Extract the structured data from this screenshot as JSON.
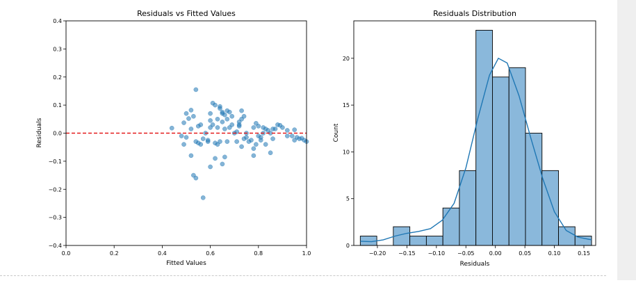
{
  "chart_data": [
    {
      "type": "scatter",
      "title": "Residuals vs Fitted Values",
      "xlabel": "Fitted Values",
      "ylabel": "Residuals",
      "xlim": [
        0.0,
        1.0
      ],
      "ylim": [
        -0.4,
        0.4
      ],
      "xticks": [
        "0.0",
        "0.2",
        "0.4",
        "0.6",
        "0.8",
        "1.0"
      ],
      "yticks": [
        "−0.4",
        "−0.3",
        "−0.2",
        "−0.1",
        "0.0",
        "0.1",
        "0.2",
        "0.3",
        "0.4"
      ],
      "reference_line": {
        "y": 0.0,
        "style": "dashed",
        "color": "#e41a1c"
      },
      "point_color": "#1f77b4",
      "grid": false,
      "points": [
        [
          0.44,
          0.018
        ],
        [
          0.48,
          -0.01
        ],
        [
          0.49,
          0.037
        ],
        [
          0.49,
          -0.04
        ],
        [
          0.5,
          0.07
        ],
        [
          0.5,
          -0.015
        ],
        [
          0.51,
          0.052
        ],
        [
          0.52,
          0.082
        ],
        [
          0.52,
          0.015
        ],
        [
          0.52,
          -0.08
        ],
        [
          0.53,
          0.06
        ],
        [
          0.53,
          -0.15
        ],
        [
          0.54,
          0.155
        ],
        [
          0.54,
          -0.03
        ],
        [
          0.54,
          -0.16
        ],
        [
          0.55,
          0.025
        ],
        [
          0.55,
          -0.035
        ],
        [
          0.56,
          0.03
        ],
        [
          0.56,
          -0.04
        ],
        [
          0.57,
          -0.23
        ],
        [
          0.57,
          -0.02
        ],
        [
          0.58,
          0.0
        ],
        [
          0.59,
          -0.025
        ],
        [
          0.59,
          -0.03
        ],
        [
          0.6,
          0.07
        ],
        [
          0.6,
          0.045
        ],
        [
          0.6,
          0.02
        ],
        [
          0.6,
          -0.12
        ],
        [
          0.61,
          0.107
        ],
        [
          0.61,
          0.03
        ],
        [
          0.62,
          -0.035
        ],
        [
          0.62,
          -0.09
        ],
        [
          0.62,
          0.1
        ],
        [
          0.63,
          0.02
        ],
        [
          0.63,
          -0.04
        ],
        [
          0.63,
          0.05
        ],
        [
          0.64,
          0.095
        ],
        [
          0.64,
          0.088
        ],
        [
          0.64,
          -0.03
        ],
        [
          0.65,
          0.07
        ],
        [
          0.65,
          0.075
        ],
        [
          0.65,
          0.04
        ],
        [
          0.65,
          -0.11
        ],
        [
          0.66,
          0.065
        ],
        [
          0.66,
          -0.085
        ],
        [
          0.66,
          0.015
        ],
        [
          0.67,
          0.08
        ],
        [
          0.67,
          0.05
        ],
        [
          0.67,
          -0.03
        ],
        [
          0.68,
          0.075
        ],
        [
          0.68,
          0.02
        ],
        [
          0.69,
          0.06
        ],
        [
          0.69,
          0.03
        ],
        [
          0.7,
          0.0
        ],
        [
          0.71,
          0.005
        ],
        [
          0.71,
          -0.03
        ],
        [
          0.72,
          0.04
        ],
        [
          0.72,
          0.025
        ],
        [
          0.72,
          0.03
        ],
        [
          0.73,
          -0.048
        ],
        [
          0.73,
          0.08
        ],
        [
          0.73,
          0.05
        ],
        [
          0.74,
          -0.02
        ],
        [
          0.74,
          0.06
        ],
        [
          0.75,
          0.0
        ],
        [
          0.75,
          -0.015
        ],
        [
          0.76,
          -0.03
        ],
        [
          0.77,
          -0.025
        ],
        [
          0.78,
          -0.055
        ],
        [
          0.78,
          -0.08
        ],
        [
          0.78,
          0.02
        ],
        [
          0.79,
          0.035
        ],
        [
          0.79,
          -0.04
        ],
        [
          0.8,
          0.025
        ],
        [
          0.8,
          -0.01
        ],
        [
          0.81,
          -0.025
        ],
        [
          0.81,
          -0.015
        ],
        [
          0.82,
          0.02
        ],
        [
          0.82,
          0.0
        ],
        [
          0.83,
          0.015
        ],
        [
          0.83,
          -0.04
        ],
        [
          0.84,
          0.01
        ],
        [
          0.85,
          0.0
        ],
        [
          0.85,
          -0.07
        ],
        [
          0.86,
          0.015
        ],
        [
          0.86,
          -0.02
        ],
        [
          0.87,
          0.015
        ],
        [
          0.88,
          0.03
        ],
        [
          0.89,
          0.028
        ],
        [
          0.9,
          0.02
        ],
        [
          0.92,
          0.01
        ],
        [
          0.92,
          -0.01
        ],
        [
          0.94,
          -0.01
        ],
        [
          0.95,
          0.012
        ],
        [
          0.95,
          -0.025
        ],
        [
          0.96,
          -0.015
        ],
        [
          0.97,
          -0.02
        ],
        [
          0.98,
          -0.018
        ],
        [
          0.99,
          -0.025
        ],
        [
          1.0,
          -0.03
        ]
      ]
    },
    {
      "type": "bar",
      "subtype": "histogram-with-kde",
      "title": "Residuals Distribution",
      "xlabel": "Residuals",
      "ylabel": "Count",
      "xlim": [
        -0.24,
        0.17
      ],
      "ylim": [
        0,
        24
      ],
      "xticks": [
        "−0.20",
        "−0.15",
        "−0.10",
        "−0.05",
        "0.00",
        "0.05",
        "0.10",
        "0.15"
      ],
      "yticks": [
        "0",
        "5",
        "10",
        "15",
        "20"
      ],
      "bar_color": "#8ab8db",
      "edge_color": "#000000",
      "kde_color": "#1f77b4",
      "grid": false,
      "bins": [
        [
          -0.229,
          -0.201,
          1
        ],
        [
          -0.201,
          -0.173,
          0
        ],
        [
          -0.173,
          -0.145,
          2
        ],
        [
          -0.145,
          -0.117,
          1
        ],
        [
          -0.117,
          -0.089,
          1
        ],
        [
          -0.089,
          -0.061,
          4
        ],
        [
          -0.061,
          -0.033,
          8
        ],
        [
          -0.033,
          -0.005,
          23
        ],
        [
          -0.005,
          0.023,
          18
        ],
        [
          0.023,
          0.051,
          19
        ],
        [
          0.051,
          0.079,
          12
        ],
        [
          0.079,
          0.107,
          8
        ],
        [
          0.107,
          0.135,
          2
        ],
        [
          0.135,
          0.163,
          1
        ]
      ],
      "kde": [
        [
          -0.229,
          0.45
        ],
        [
          -0.21,
          0.4
        ],
        [
          -0.19,
          0.6
        ],
        [
          -0.17,
          1.0
        ],
        [
          -0.15,
          1.3
        ],
        [
          -0.13,
          1.5
        ],
        [
          -0.11,
          1.8
        ],
        [
          -0.09,
          2.7
        ],
        [
          -0.07,
          4.5
        ],
        [
          -0.05,
          8.3
        ],
        [
          -0.03,
          13.5
        ],
        [
          -0.01,
          18.2
        ],
        [
          0.005,
          20.0
        ],
        [
          0.02,
          19.5
        ],
        [
          0.04,
          16.0
        ],
        [
          0.06,
          11.5
        ],
        [
          0.08,
          7.2
        ],
        [
          0.1,
          3.6
        ],
        [
          0.12,
          1.6
        ],
        [
          0.14,
          0.9
        ],
        [
          0.163,
          0.6
        ]
      ]
    }
  ]
}
